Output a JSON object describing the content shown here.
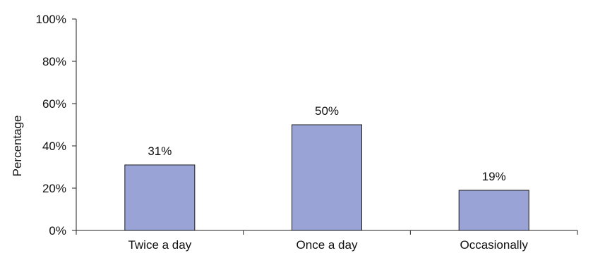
{
  "chart_data": {
    "type": "bar",
    "categories": [
      "Twice a day",
      "Once a day",
      "Occasionally"
    ],
    "values": [
      31,
      50,
      19
    ],
    "data_labels": [
      "31%",
      "50%",
      "19%"
    ],
    "title": "",
    "xlabel": "",
    "ylabel": "Percentage",
    "ylim": [
      0,
      100
    ],
    "yticks": [
      0,
      20,
      40,
      60,
      80,
      100
    ],
    "ytick_labels": [
      "0%",
      "20%",
      "40%",
      "60%",
      "80%",
      "100%"
    ],
    "grid": false,
    "legend": "none",
    "bar_color": "#99a3d6",
    "bar_edge_color": "#1c1c1c"
  }
}
